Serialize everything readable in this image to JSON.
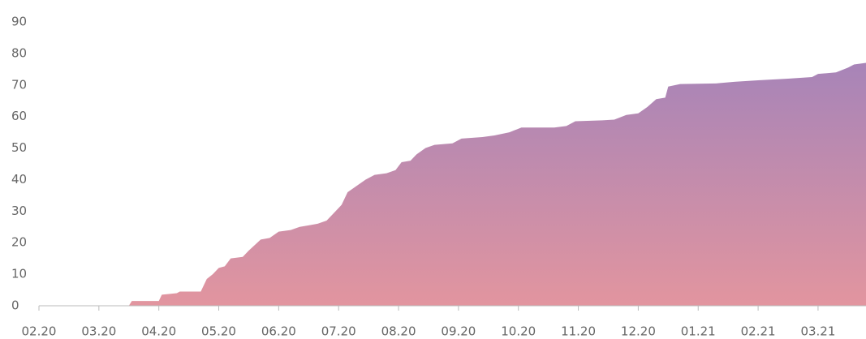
{
  "chart_data": {
    "type": "area",
    "x": [
      0,
      1.5,
      1.55,
      2.0,
      2.05,
      2.3,
      2.35,
      2.7,
      2.8,
      2.9,
      3.0,
      3.1,
      3.2,
      3.4,
      3.5,
      3.7,
      3.85,
      4.0,
      4.2,
      4.35,
      4.5,
      4.65,
      4.8,
      4.95,
      5.05,
      5.15,
      5.3,
      5.45,
      5.6,
      5.8,
      5.95,
      6.05,
      6.2,
      6.3,
      6.45,
      6.6,
      6.9,
      7.05,
      7.4,
      7.6,
      7.85,
      8.05,
      8.6,
      8.8,
      8.95,
      9.4,
      9.6,
      9.8,
      10.0,
      10.15,
      10.3,
      10.45,
      10.5,
      10.7,
      11.3,
      11.6,
      12.0,
      12.5,
      12.9,
      13.0,
      13.3,
      13.5,
      13.6,
      13.8
    ],
    "values": [
      0,
      0,
      1.5,
      1.5,
      3.5,
      4,
      4.5,
      4.5,
      8.5,
      10,
      12,
      12.5,
      15,
      15.5,
      17.5,
      21,
      21.5,
      23.5,
      24,
      25,
      25.5,
      26,
      27,
      30,
      32,
      36,
      38,
      40,
      41.5,
      42,
      43,
      45.5,
      46,
      48,
      50,
      51,
      51.5,
      53,
      53.5,
      54,
      55,
      56.5,
      56.5,
      57,
      58.5,
      58.8,
      59,
      60.5,
      61,
      63,
      65.5,
      66,
      69.5,
      70.3,
      70.5,
      71,
      71.5,
      72,
      72.5,
      73.5,
      74,
      75.5,
      76.5,
      77
    ],
    "gradient": [
      "#a784b8",
      "#e2959f"
    ],
    "xlim": [
      0,
      13.8
    ],
    "xticks": [
      {
        "value": 0,
        "label": "02.20"
      },
      {
        "value": 1,
        "label": "03.20"
      },
      {
        "value": 2,
        "label": "04.20"
      },
      {
        "value": 3,
        "label": "05.20"
      },
      {
        "value": 4,
        "label": "06.20"
      },
      {
        "value": 5,
        "label": "07.20"
      },
      {
        "value": 6,
        "label": "08.20"
      },
      {
        "value": 7,
        "label": "09.20"
      },
      {
        "value": 8,
        "label": "10.20"
      },
      {
        "value": 9,
        "label": "11.20"
      },
      {
        "value": 10,
        "label": "12.20"
      },
      {
        "value": 11,
        "label": "01.21"
      },
      {
        "value": 12,
        "label": "02.21"
      },
      {
        "value": 13,
        "label": "03.21"
      }
    ],
    "ylim": [
      0,
      90
    ],
    "yticks": [
      0,
      10,
      20,
      30,
      40,
      50,
      60,
      70,
      80,
      90
    ],
    "grid": false
  }
}
